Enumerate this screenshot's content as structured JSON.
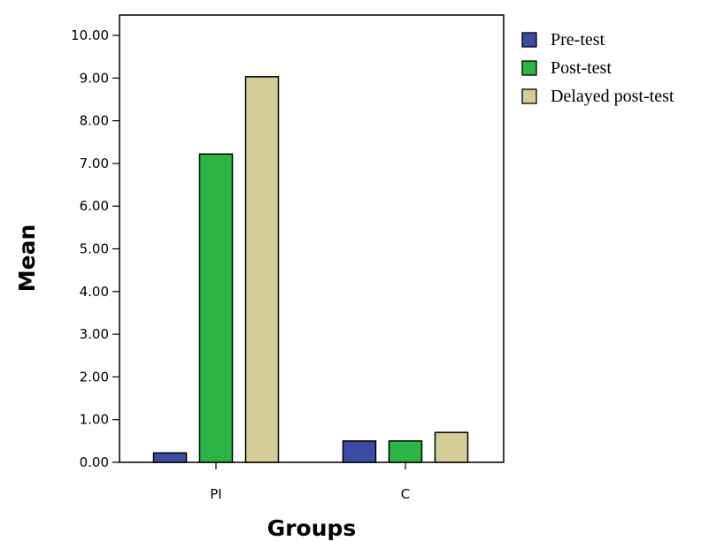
{
  "chart_data": {
    "type": "bar",
    "title": "",
    "xlabel": "Groups",
    "ylabel": "Mean",
    "categories": [
      "PI",
      "C"
    ],
    "series": [
      {
        "name": "Pre-test",
        "values": [
          0.22,
          0.5
        ],
        "color": "#3b4ca3"
      },
      {
        "name": "Post-test",
        "values": [
          7.22,
          0.5
        ],
        "color": "#2db543"
      },
      {
        "name": "Delayed post-test",
        "values": [
          9.03,
          0.7
        ],
        "color": "#d6cc97"
      }
    ],
    "ylim": [
      0,
      10.5
    ],
    "yticks": [
      "0.00",
      "1.00",
      "2.00",
      "3.00",
      "4.00",
      "5.00",
      "6.00",
      "7.00",
      "8.00",
      "9.00",
      "10.00"
    ],
    "grid": false,
    "legend_position": "right"
  }
}
